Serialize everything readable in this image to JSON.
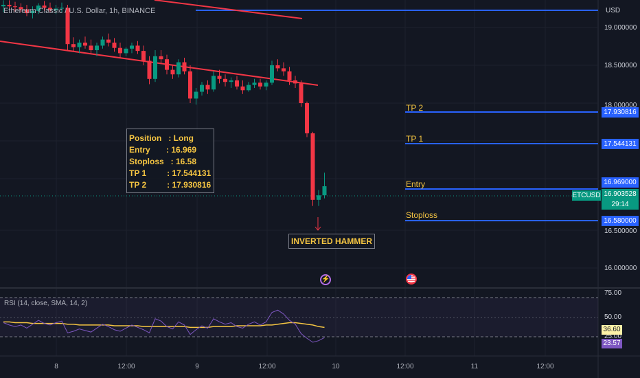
{
  "chart_header": {
    "symbol_title": "Ethereum Classic / U.S. Dollar, 1h, BINANCE"
  },
  "price_axis": {
    "currency": "USD",
    "labels": [
      "19.000000",
      "18.500000",
      "18.000000",
      "16.500000",
      "16.000000"
    ]
  },
  "levels": [
    {
      "name": "TP 2",
      "price": 17.930816,
      "tag": "17.930816"
    },
    {
      "name": "TP 1",
      "price": 17.544131,
      "tag": "17.544131"
    },
    {
      "name": "Entry",
      "price": 16.969,
      "tag": "16.969000"
    },
    {
      "name": "Stoploss",
      "price": 16.58,
      "tag": "16.580000"
    }
  ],
  "current_price": {
    "symbol": "ETCUSD",
    "price": "16.903528",
    "countdown": "29:14"
  },
  "position_box": {
    "position": "Position   : Long",
    "entry": "Entry       : 16.969",
    "stoploss": "Stoploss   : 16.58",
    "tp1": "TP 1         : 17.544131",
    "tp2": "TP 2         : 17.930816"
  },
  "pattern_label": "INVERTED HAMMER",
  "rsi_panel": {
    "label": "RSI (14, close, SMA, 14, 2)",
    "axis_labels": [
      "75.00",
      "50.00",
      "25.00"
    ],
    "sma_value": "36.60",
    "rsi_value": "23.57"
  },
  "time_axis": [
    "8",
    "12:00",
    "9",
    "12:00",
    "10",
    "12:00",
    "11",
    "12:00"
  ],
  "icons": {
    "event_lightning": "lightning-icon",
    "event_flag": "us-flag-icon"
  },
  "colors": {
    "background": "#131722",
    "bull": "#089981",
    "bear": "#f23645",
    "level_line": "#2962ff",
    "trendline": "#f23645",
    "label_yellow": "#f5c542",
    "rsi_line": "#7e57c2",
    "rsi_sma": "#f5c542"
  },
  "chart_data": {
    "type": "candlestick",
    "timeframe": "1h",
    "y_range": [
      15.75,
      19.35
    ],
    "x_ticks": [
      "8",
      "12:00",
      "9",
      "12:00",
      "10",
      "12:00",
      "11",
      "12:00"
    ],
    "ohlc": [
      [
        19.28,
        19.36,
        19.2,
        19.3
      ],
      [
        19.3,
        19.36,
        19.24,
        19.28
      ],
      [
        19.28,
        19.34,
        19.21,
        19.27
      ],
      [
        19.27,
        19.32,
        19.2,
        19.24
      ],
      [
        19.24,
        19.3,
        19.15,
        19.19
      ],
      [
        19.19,
        19.28,
        19.12,
        19.22
      ],
      [
        19.22,
        19.32,
        19.18,
        19.29
      ],
      [
        19.29,
        19.35,
        19.22,
        19.26
      ],
      [
        19.26,
        19.33,
        19.2,
        19.23
      ],
      [
        19.23,
        19.3,
        19.18,
        19.25
      ],
      [
        19.25,
        19.33,
        19.2,
        19.26
      ],
      [
        19.26,
        19.3,
        18.7,
        18.78
      ],
      [
        18.78,
        18.87,
        18.68,
        18.74
      ],
      [
        18.74,
        18.84,
        18.66,
        18.8
      ],
      [
        18.8,
        18.88,
        18.72,
        18.76
      ],
      [
        18.76,
        18.84,
        18.66,
        18.7
      ],
      [
        18.7,
        18.8,
        18.62,
        18.76
      ],
      [
        18.76,
        18.88,
        18.72,
        18.84
      ],
      [
        18.84,
        18.92,
        18.75,
        18.8
      ],
      [
        18.8,
        18.86,
        18.68,
        18.73
      ],
      [
        18.73,
        18.8,
        18.6,
        18.66
      ],
      [
        18.66,
        18.74,
        18.62,
        18.72
      ],
      [
        18.72,
        18.8,
        18.66,
        18.76
      ],
      [
        18.76,
        18.82,
        18.65,
        18.69
      ],
      [
        18.69,
        18.76,
        18.5,
        18.56
      ],
      [
        18.56,
        18.62,
        18.25,
        18.32
      ],
      [
        18.32,
        18.7,
        18.28,
        18.62
      ],
      [
        18.62,
        18.7,
        18.52,
        18.58
      ],
      [
        18.58,
        18.64,
        18.38,
        18.44
      ],
      [
        18.44,
        18.5,
        18.32,
        18.38
      ],
      [
        18.38,
        18.58,
        18.34,
        18.54
      ],
      [
        18.54,
        18.6,
        18.38,
        18.42
      ],
      [
        18.42,
        18.5,
        18.0,
        18.06
      ],
      [
        18.06,
        18.2,
        17.98,
        18.15
      ],
      [
        18.15,
        18.28,
        18.1,
        18.24
      ],
      [
        18.24,
        18.3,
        18.12,
        18.18
      ],
      [
        18.18,
        18.42,
        18.15,
        18.36
      ],
      [
        18.36,
        18.44,
        18.26,
        18.32
      ],
      [
        18.32,
        18.38,
        18.22,
        18.28
      ],
      [
        18.28,
        18.34,
        18.2,
        18.3
      ],
      [
        18.3,
        18.36,
        18.18,
        18.22
      ],
      [
        18.22,
        18.3,
        18.12,
        18.17
      ],
      [
        18.17,
        18.28,
        18.15,
        18.24
      ],
      [
        18.24,
        18.32,
        18.2,
        18.27
      ],
      [
        18.27,
        18.32,
        18.18,
        18.22
      ],
      [
        18.22,
        18.3,
        18.17,
        18.27
      ],
      [
        18.27,
        18.56,
        18.24,
        18.5
      ],
      [
        18.5,
        18.58,
        18.42,
        18.46
      ],
      [
        18.46,
        18.54,
        18.36,
        18.42
      ],
      [
        18.42,
        18.48,
        18.24,
        18.3
      ],
      [
        18.3,
        18.36,
        18.2,
        18.26
      ],
      [
        18.26,
        18.3,
        17.95,
        18.0
      ],
      [
        18.0,
        18.02,
        17.55,
        17.6
      ],
      [
        17.6,
        17.62,
        16.64,
        16.72
      ],
      [
        16.72,
        16.85,
        16.64,
        16.78
      ],
      [
        16.78,
        17.08,
        16.74,
        16.9
      ]
    ],
    "rsi": [
      43,
      40,
      38,
      40,
      36,
      41,
      46,
      42,
      40,
      43,
      45,
      30,
      32,
      35,
      33,
      31,
      36,
      41,
      38,
      34,
      32,
      36,
      40,
      37,
      34,
      30,
      48,
      45,
      38,
      35,
      44,
      40,
      28,
      34,
      39,
      36,
      48,
      44,
      41,
      43,
      38,
      36,
      41,
      44,
      40,
      44,
      56,
      59,
      54,
      46,
      41,
      29,
      23,
      18,
      20,
      24
    ],
    "rsi_sma": [
      44,
      44,
      43,
      43,
      43,
      42,
      42,
      42,
      42,
      42,
      42,
      41,
      41,
      40,
      40,
      40,
      40,
      40,
      40,
      39,
      39,
      39,
      39,
      39,
      38,
      38,
      38,
      38,
      38,
      38,
      38,
      38,
      37,
      37,
      37,
      37,
      38,
      38,
      38,
      38,
      39,
      39,
      39,
      39,
      39,
      40,
      40,
      41,
      42,
      43,
      43,
      42,
      41,
      40,
      38,
      37
    ]
  }
}
